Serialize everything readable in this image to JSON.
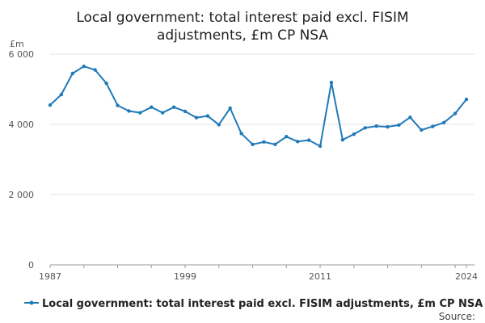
{
  "chart_data": {
    "type": "line",
    "title_lines": [
      "Local government: total interest paid excl. FISIM",
      "adjustments, £m CP NSA"
    ],
    "ylabel": "£m",
    "xlabel": "",
    "ylim": [
      0,
      6000
    ],
    "y_ticks": [
      0,
      2000,
      4000,
      6000
    ],
    "y_tick_labels": [
      "0",
      "2 000",
      "4 000",
      "6 000"
    ],
    "x_tick_labels": [
      "1987",
      "1999",
      "2011",
      "2024"
    ],
    "x_tick_positions": [
      1987,
      1999,
      2011,
      2024
    ],
    "grid": true,
    "legend_position": "bottom",
    "series_color": "#1f7ab8",
    "series": [
      {
        "name": "Local government: total interest paid excl. FISIM adjustments, £m CP NSA",
        "x": [
          1987,
          1988,
          1989,
          1990,
          1991,
          1992,
          1993,
          1994,
          1995,
          1996,
          1997,
          1998,
          1999,
          2000,
          2001,
          2002,
          2003,
          2004,
          2005,
          2006,
          2007,
          2008,
          2009,
          2010,
          2011,
          2012,
          2013,
          2014,
          2015,
          2016,
          2017,
          2018,
          2019,
          2020,
          2021,
          2022,
          2023,
          2024
        ],
        "values": [
          4550,
          4850,
          5450,
          5650,
          5550,
          5170,
          4540,
          4380,
          4330,
          4490,
          4330,
          4490,
          4370,
          4190,
          4240,
          3990,
          4460,
          3740,
          3430,
          3500,
          3430,
          3650,
          3510,
          3550,
          3380,
          5190,
          3560,
          3720,
          3900,
          3950,
          3930,
          3980,
          4200,
          3840,
          3940,
          4050,
          4310,
          4710
        ]
      }
    ]
  },
  "source_label": "Source:"
}
